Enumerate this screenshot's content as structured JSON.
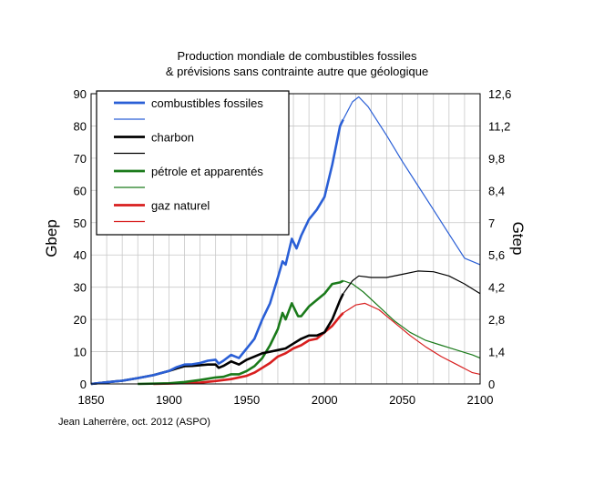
{
  "title_line1": "Production mondiale de combustibles fossiles",
  "title_line2": "& prévisions sans contrainte autre que géologique",
  "credit": "Jean Laherrère,  oct. 2012 (ASPO)",
  "colors": {
    "fossil": "#2a5fd6",
    "coal": "#000000",
    "oil": "#1a7a1a",
    "gas": "#d81e1e",
    "grid": "#c8c8c8"
  },
  "chart_data": {
    "type": "line",
    "ylabel_left": "Gbep",
    "ylabel_right": "Gtep",
    "xlim": [
      1850,
      2100
    ],
    "ylim_left": [
      0,
      90
    ],
    "ylim_right": [
      0,
      12.6
    ],
    "x_ticks": [
      "1850",
      "1900",
      "1950",
      "2000",
      "2050",
      "2100"
    ],
    "y_ticks_left": [
      "0",
      "10",
      "20",
      "30",
      "40",
      "50",
      "60",
      "70",
      "80",
      "90"
    ],
    "y_ticks_right": [
      "0",
      "1,4",
      "2,8",
      "4,2",
      "5,6",
      "7",
      "8,4",
      "9,8",
      "11,2",
      "12,6"
    ],
    "grid": true,
    "legend_position": "top-left",
    "legend": [
      "combustibles fossiles",
      "charbon",
      "pétrole et apparentés",
      "gaz naturel"
    ],
    "series": [
      {
        "key": "fossil",
        "name": "combustibles fossiles",
        "historical": [
          [
            1850,
            0
          ],
          [
            1860,
            0.5
          ],
          [
            1870,
            1
          ],
          [
            1880,
            1.8
          ],
          [
            1890,
            2.7
          ],
          [
            1900,
            4
          ],
          [
            1905,
            5.2
          ],
          [
            1910,
            6
          ],
          [
            1915,
            6.1
          ],
          [
            1920,
            6.5
          ],
          [
            1925,
            7.2
          ],
          [
            1930,
            7.5
          ],
          [
            1932,
            6.3
          ],
          [
            1935,
            7.2
          ],
          [
            1940,
            9
          ],
          [
            1945,
            8
          ],
          [
            1950,
            11
          ],
          [
            1955,
            14
          ],
          [
            1960,
            20
          ],
          [
            1965,
            25
          ],
          [
            1970,
            33
          ],
          [
            1973,
            38
          ],
          [
            1975,
            37
          ],
          [
            1979,
            45
          ],
          [
            1982,
            42
          ],
          [
            1985,
            46
          ],
          [
            1990,
            51
          ],
          [
            1995,
            54
          ],
          [
            2000,
            58
          ],
          [
            2005,
            68
          ],
          [
            2010,
            80
          ],
          [
            2012,
            82
          ]
        ],
        "forecast": [
          [
            2012,
            82
          ],
          [
            2018,
            87.5
          ],
          [
            2022,
            89
          ],
          [
            2028,
            86
          ],
          [
            2040,
            77
          ],
          [
            2050,
            69
          ],
          [
            2060,
            61.5
          ],
          [
            2070,
            54
          ],
          [
            2080,
            46.5
          ],
          [
            2090,
            39
          ],
          [
            2100,
            37
          ]
        ]
      },
      {
        "key": "coal",
        "name": "charbon",
        "historical": [
          [
            1850,
            0
          ],
          [
            1860,
            0.5
          ],
          [
            1870,
            1
          ],
          [
            1880,
            1.8
          ],
          [
            1890,
            2.7
          ],
          [
            1900,
            4
          ],
          [
            1905,
            4.8
          ],
          [
            1910,
            5.5
          ],
          [
            1915,
            5.6
          ],
          [
            1920,
            5.8
          ],
          [
            1925,
            6
          ],
          [
            1930,
            6
          ],
          [
            1932,
            5
          ],
          [
            1935,
            5.6
          ],
          [
            1940,
            7
          ],
          [
            1945,
            6
          ],
          [
            1950,
            7.5
          ],
          [
            1955,
            8.5
          ],
          [
            1960,
            9.5
          ],
          [
            1965,
            10
          ],
          [
            1970,
            10.5
          ],
          [
            1975,
            11
          ],
          [
            1980,
            12.5
          ],
          [
            1985,
            14
          ],
          [
            1990,
            15
          ],
          [
            1995,
            15
          ],
          [
            2000,
            16
          ],
          [
            2005,
            20
          ],
          [
            2010,
            26
          ],
          [
            2012,
            28
          ]
        ],
        "forecast": [
          [
            2012,
            28
          ],
          [
            2018,
            32
          ],
          [
            2022,
            33.5
          ],
          [
            2030,
            33
          ],
          [
            2040,
            33
          ],
          [
            2050,
            34
          ],
          [
            2060,
            35
          ],
          [
            2070,
            34.8
          ],
          [
            2080,
            33.5
          ],
          [
            2090,
            31
          ],
          [
            2100,
            28
          ]
        ]
      },
      {
        "key": "oil",
        "name": "pétrole et apparentés",
        "historical": [
          [
            1880,
            0
          ],
          [
            1900,
            0.2
          ],
          [
            1910,
            0.6
          ],
          [
            1920,
            1.2
          ],
          [
            1930,
            2
          ],
          [
            1935,
            2.2
          ],
          [
            1940,
            3
          ],
          [
            1945,
            3
          ],
          [
            1950,
            4
          ],
          [
            1955,
            5.5
          ],
          [
            1960,
            8
          ],
          [
            1965,
            12
          ],
          [
            1970,
            17
          ],
          [
            1973,
            22
          ],
          [
            1975,
            20
          ],
          [
            1979,
            25
          ],
          [
            1983,
            21
          ],
          [
            1985,
            21
          ],
          [
            1990,
            24
          ],
          [
            1995,
            26
          ],
          [
            2000,
            28
          ],
          [
            2005,
            31
          ],
          [
            2010,
            31.5
          ],
          [
            2012,
            32
          ]
        ],
        "forecast": [
          [
            2012,
            32
          ],
          [
            2018,
            31
          ],
          [
            2025,
            28.5
          ],
          [
            2035,
            24
          ],
          [
            2045,
            19.5
          ],
          [
            2055,
            16
          ],
          [
            2065,
            13.5
          ],
          [
            2075,
            12
          ],
          [
            2085,
            10.5
          ],
          [
            2095,
            9
          ],
          [
            2100,
            8
          ]
        ]
      },
      {
        "key": "gas",
        "name": "gaz naturel",
        "historical": [
          [
            1890,
            0
          ],
          [
            1900,
            0.1
          ],
          [
            1920,
            0.4
          ],
          [
            1930,
            0.9
          ],
          [
            1940,
            1.5
          ],
          [
            1950,
            2.5
          ],
          [
            1955,
            3.5
          ],
          [
            1960,
            5
          ],
          [
            1965,
            6.5
          ],
          [
            1970,
            8.5
          ],
          [
            1975,
            9.5
          ],
          [
            1980,
            11
          ],
          [
            1985,
            12
          ],
          [
            1990,
            13.5
          ],
          [
            1995,
            14
          ],
          [
            2000,
            16
          ],
          [
            2005,
            18
          ],
          [
            2010,
            21
          ],
          [
            2012,
            22
          ]
        ],
        "forecast": [
          [
            2012,
            22
          ],
          [
            2020,
            24.5
          ],
          [
            2026,
            25
          ],
          [
            2035,
            23
          ],
          [
            2045,
            19
          ],
          [
            2055,
            15
          ],
          [
            2065,
            11.5
          ],
          [
            2075,
            8.5
          ],
          [
            2085,
            6
          ],
          [
            2095,
            3.5
          ],
          [
            2100,
            3
          ]
        ]
      }
    ]
  }
}
